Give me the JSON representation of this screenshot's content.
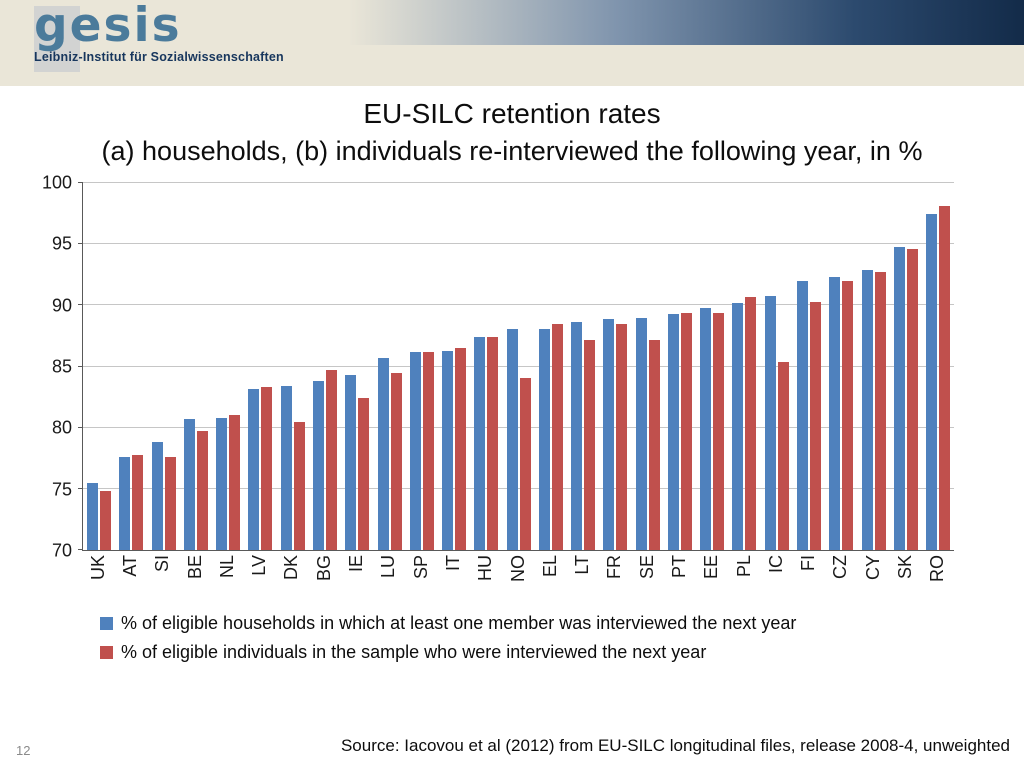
{
  "header": {
    "logo_text": "gesis",
    "logo_subtitle": "Leibniz-Institut für Sozialwissenschaften"
  },
  "title": {
    "line1": "EU-SILC retention rates",
    "line2": "(a) households, (b) individuals re-interviewed the following year, in %"
  },
  "chart_data": {
    "type": "bar",
    "categories": [
      "UK",
      "AT",
      "SI",
      "BE",
      "NL",
      "LV",
      "DK",
      "BG",
      "IE",
      "LU",
      "SP",
      "IT",
      "HU",
      "NO",
      "EL",
      "LT",
      "FR",
      "SE",
      "PT",
      "EE",
      "PL",
      "IC",
      "FI",
      "CZ",
      "CY",
      "SK",
      "RO"
    ],
    "series": [
      {
        "name": "% of eligible households in which at least one member was interviewed the next year",
        "color": "#4F81BD",
        "values": [
          75.5,
          77.6,
          78.8,
          80.7,
          80.8,
          83.2,
          83.4,
          83.8,
          84.3,
          85.7,
          86.2,
          86.3,
          87.4,
          88.1,
          88.1,
          88.6,
          88.9,
          89.0,
          89.3,
          89.8,
          90.2,
          90.8,
          92.0,
          92.3,
          92.9,
          94.8,
          97.5
        ]
      },
      {
        "name": "% of eligible individuals in the sample who were interviewed the next year",
        "color": "#C0504D",
        "values": [
          74.8,
          77.8,
          77.6,
          79.7,
          81.0,
          83.3,
          80.5,
          84.7,
          82.4,
          84.5,
          86.2,
          86.5,
          87.4,
          84.1,
          88.5,
          87.2,
          88.5,
          87.2,
          89.4,
          89.4,
          90.7,
          85.4,
          90.3,
          92.0,
          92.7,
          94.6,
          98.1
        ]
      }
    ],
    "ylim": [
      70,
      100
    ],
    "yticks": [
      70,
      75,
      80,
      85,
      90,
      95,
      100
    ],
    "grid": true,
    "legend_position": "bottom-left"
  },
  "footer": {
    "page_number": "12",
    "source": "Source: Iacovou et al (2012) from EU-SILC longitudinal files, release 2008-4, unweighted"
  }
}
